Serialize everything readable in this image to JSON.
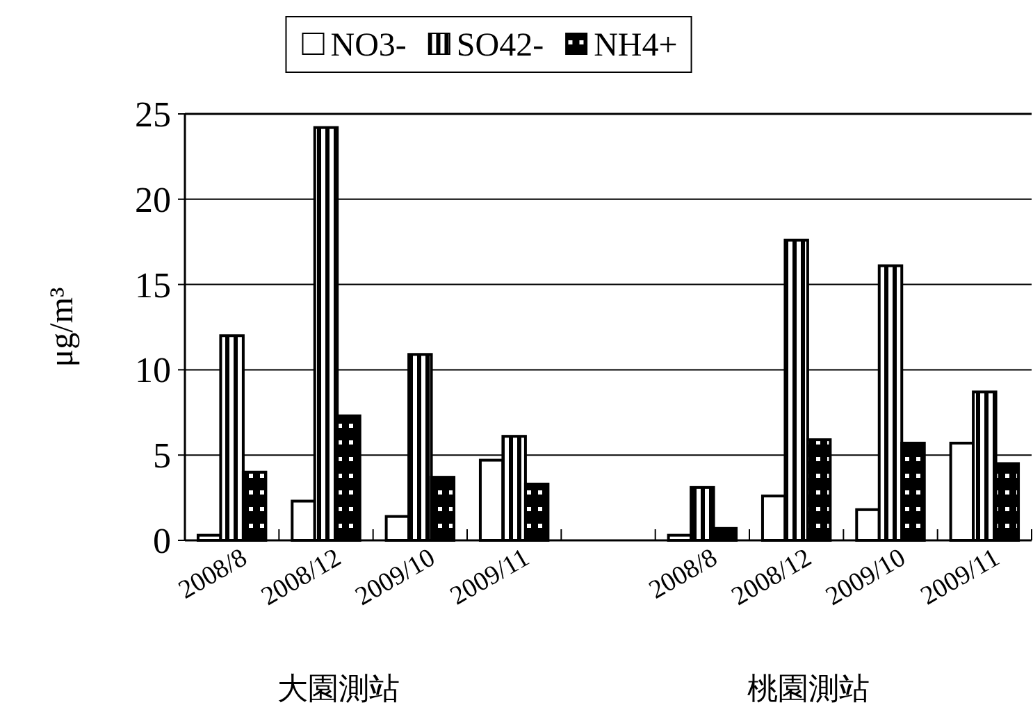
{
  "chart_data": {
    "type": "bar",
    "categories": [
      "2008/8",
      "2008/12",
      "2009/10",
      "2009/11",
      null,
      "2008/8",
      "2008/12",
      "2009/10",
      "2009/11"
    ],
    "series": [
      {
        "name": "NO3-",
        "color": "#ffffff",
        "values": [
          0.3,
          2.3,
          1.4,
          4.7,
          null,
          0.3,
          2.6,
          1.8,
          5.7
        ]
      },
      {
        "name": "SO42-",
        "color": "#000000",
        "values": [
          12.0,
          24.2,
          10.9,
          6.1,
          null,
          3.1,
          17.6,
          16.1,
          8.7
        ]
      },
      {
        "name": "NH4+",
        "color": "#000000",
        "values": [
          4.0,
          7.3,
          3.7,
          3.3,
          null,
          0.7,
          5.9,
          5.7,
          4.5
        ]
      }
    ],
    "ylabel": "μg/m³",
    "ylim": [
      0,
      25
    ],
    "yticks": [
      0,
      5,
      10,
      15,
      20,
      25
    ],
    "grid": "y",
    "legend": "top",
    "annotations": [
      "大園測站",
      "桃園測站"
    ]
  }
}
